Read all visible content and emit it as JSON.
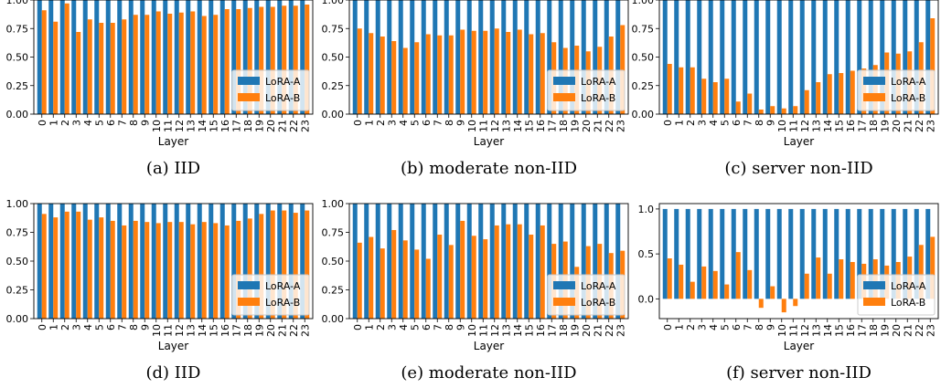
{
  "colors": {
    "lora_a": "#1f77b4",
    "lora_b": "#ff7f0e"
  },
  "chart_data": [
    {
      "type": "bar",
      "caption": "(a)  IID",
      "xlabel": "Layer",
      "ylim": [
        0,
        1.0
      ],
      "yticks": [
        0.0,
        0.25,
        0.5,
        0.75,
        1.0
      ],
      "ytick_labels": [
        "0.00",
        "0.25",
        "0.50",
        "0.75",
        "1.00"
      ],
      "legend_position": "lower-right",
      "categories": [
        "0",
        "1",
        "2",
        "3",
        "4",
        "5",
        "6",
        "7",
        "8",
        "9",
        "10",
        "11",
        "12",
        "13",
        "14",
        "15",
        "16",
        "17",
        "18",
        "19",
        "20",
        "21",
        "22",
        "23"
      ],
      "series": [
        {
          "name": "LoRA-A",
          "values": [
            1,
            1,
            1,
            1,
            1,
            1,
            1,
            1,
            1,
            1,
            1,
            1,
            1,
            1,
            1,
            1,
            1,
            1,
            1,
            1,
            1,
            1,
            1,
            1
          ]
        },
        {
          "name": "LoRA-B",
          "values": [
            0.91,
            0.81,
            0.97,
            0.72,
            0.83,
            0.8,
            0.8,
            0.83,
            0.87,
            0.87,
            0.9,
            0.88,
            0.89,
            0.9,
            0.86,
            0.87,
            0.92,
            0.92,
            0.93,
            0.94,
            0.94,
            0.95,
            0.95,
            0.96
          ]
        }
      ]
    },
    {
      "type": "bar",
      "caption": "(b)  moderate non-IID",
      "xlabel": "Layer",
      "ylim": [
        0,
        1.0
      ],
      "yticks": [
        0.0,
        0.25,
        0.5,
        0.75,
        1.0
      ],
      "ytick_labels": [
        "0.00",
        "0.25",
        "0.50",
        "0.75",
        "1.00"
      ],
      "legend_position": "lower-right",
      "categories": [
        "0",
        "1",
        "2",
        "3",
        "4",
        "5",
        "6",
        "7",
        "8",
        "9",
        "10",
        "11",
        "12",
        "13",
        "14",
        "15",
        "16",
        "17",
        "18",
        "19",
        "20",
        "21",
        "22",
        "23"
      ],
      "series": [
        {
          "name": "LoRA-A",
          "values": [
            1,
            1,
            1,
            1,
            1,
            1,
            1,
            1,
            1,
            1,
            1,
            1,
            1,
            1,
            1,
            1,
            1,
            1,
            1,
            1,
            1,
            1,
            1,
            1
          ]
        },
        {
          "name": "LoRA-B",
          "values": [
            0.75,
            0.71,
            0.68,
            0.64,
            0.58,
            0.63,
            0.7,
            0.69,
            0.69,
            0.74,
            0.73,
            0.73,
            0.75,
            0.72,
            0.74,
            0.7,
            0.71,
            0.63,
            0.58,
            0.6,
            0.55,
            0.59,
            0.68,
            0.78
          ]
        }
      ]
    },
    {
      "type": "bar",
      "caption": "(c)  server non-IID",
      "xlabel": "Layer",
      "ylim": [
        0,
        1.0
      ],
      "yticks": [
        0.0,
        0.25,
        0.5,
        0.75,
        1.0
      ],
      "ytick_labels": [
        "0.00",
        "0.25",
        "0.50",
        "0.75",
        "1.00"
      ],
      "legend_position": "lower-right",
      "categories": [
        "0",
        "1",
        "2",
        "3",
        "4",
        "5",
        "6",
        "7",
        "8",
        "9",
        "10",
        "11",
        "12",
        "13",
        "14",
        "15",
        "16",
        "17",
        "18",
        "19",
        "20",
        "21",
        "22",
        "23"
      ],
      "series": [
        {
          "name": "LoRA-A",
          "values": [
            1,
            1,
            1,
            1,
            1,
            1,
            1,
            1,
            1,
            1,
            1,
            1,
            1,
            1,
            1,
            1,
            1,
            1,
            1,
            1,
            1,
            1,
            1,
            1
          ]
        },
        {
          "name": "LoRA-B",
          "values": [
            0.44,
            0.41,
            0.41,
            0.31,
            0.28,
            0.31,
            0.11,
            0.18,
            0.04,
            0.07,
            0.05,
            0.07,
            0.21,
            0.28,
            0.35,
            0.36,
            0.38,
            0.4,
            0.43,
            0.54,
            0.53,
            0.55,
            0.63,
            0.84
          ]
        }
      ]
    },
    {
      "type": "bar",
      "caption": "(d)  IID",
      "xlabel": "Layer",
      "ylim": [
        0,
        1.0
      ],
      "yticks": [
        0.0,
        0.25,
        0.5,
        0.75,
        1.0
      ],
      "ytick_labels": [
        "0.00",
        "0.25",
        "0.50",
        "0.75",
        "1.00"
      ],
      "legend_position": "lower-right",
      "categories": [
        "0",
        "1",
        "2",
        "3",
        "4",
        "5",
        "6",
        "7",
        "8",
        "9",
        "10",
        "11",
        "12",
        "13",
        "14",
        "15",
        "16",
        "17",
        "18",
        "19",
        "20",
        "21",
        "22",
        "23"
      ],
      "series": [
        {
          "name": "LoRA-A",
          "values": [
            1,
            1,
            1,
            1,
            1,
            1,
            1,
            1,
            1,
            1,
            1,
            1,
            1,
            1,
            1,
            1,
            1,
            1,
            1,
            1,
            1,
            1,
            1,
            1
          ]
        },
        {
          "name": "LoRA-B",
          "values": [
            0.91,
            0.88,
            0.93,
            0.93,
            0.86,
            0.88,
            0.85,
            0.81,
            0.85,
            0.84,
            0.83,
            0.84,
            0.84,
            0.82,
            0.84,
            0.83,
            0.81,
            0.85,
            0.87,
            0.91,
            0.94,
            0.94,
            0.92,
            0.94
          ]
        }
      ]
    },
    {
      "type": "bar",
      "caption": "(e)  moderate non-IID",
      "xlabel": "Layer",
      "ylim": [
        0,
        1.0
      ],
      "yticks": [
        0.0,
        0.25,
        0.5,
        0.75,
        1.0
      ],
      "ytick_labels": [
        "0.00",
        "0.25",
        "0.50",
        "0.75",
        "1.00"
      ],
      "legend_position": "lower-right",
      "categories": [
        "0",
        "1",
        "2",
        "3",
        "4",
        "5",
        "6",
        "7",
        "8",
        "9",
        "10",
        "11",
        "12",
        "13",
        "14",
        "15",
        "16",
        "17",
        "18",
        "19",
        "20",
        "21",
        "22",
        "23"
      ],
      "series": [
        {
          "name": "LoRA-A",
          "values": [
            1,
            1,
            1,
            1,
            1,
            1,
            1,
            1,
            1,
            1,
            1,
            1,
            1,
            1,
            1,
            1,
            1,
            1,
            1,
            1,
            1,
            1,
            1,
            1
          ]
        },
        {
          "name": "LoRA-B",
          "values": [
            0.66,
            0.71,
            0.61,
            0.77,
            0.68,
            0.6,
            0.52,
            0.73,
            0.64,
            0.85,
            0.72,
            0.69,
            0.81,
            0.82,
            0.82,
            0.73,
            0.81,
            0.65,
            0.67,
            0.45,
            0.63,
            0.65,
            0.57,
            0.59
          ]
        }
      ]
    },
    {
      "type": "bar",
      "caption": "(f)  server non-IID",
      "xlabel": "Layer",
      "ylim": [
        -0.22,
        1.06
      ],
      "yticks": [
        0.0,
        0.5,
        1.0
      ],
      "ytick_labels": [
        "0.0",
        "0.5",
        "1.0"
      ],
      "legend_position": "lower-right",
      "categories": [
        "0",
        "1",
        "2",
        "3",
        "4",
        "5",
        "6",
        "7",
        "8",
        "9",
        "10",
        "11",
        "12",
        "13",
        "14",
        "15",
        "16",
        "17",
        "18",
        "19",
        "20",
        "21",
        "22",
        "23"
      ],
      "series": [
        {
          "name": "LoRA-A",
          "values": [
            1,
            1,
            1,
            1,
            1,
            1,
            1,
            1,
            1,
            1,
            1,
            1,
            1,
            1,
            1,
            1,
            1,
            1,
            1,
            1,
            1,
            1,
            1,
            1
          ]
        },
        {
          "name": "LoRA-B",
          "values": [
            0.45,
            0.38,
            0.19,
            0.36,
            0.31,
            0.16,
            0.52,
            0.32,
            -0.1,
            0.14,
            -0.15,
            -0.08,
            0.28,
            0.46,
            0.28,
            0.44,
            0.41,
            0.39,
            0.44,
            0.37,
            0.41,
            0.47,
            0.6,
            0.69
          ]
        }
      ]
    }
  ]
}
